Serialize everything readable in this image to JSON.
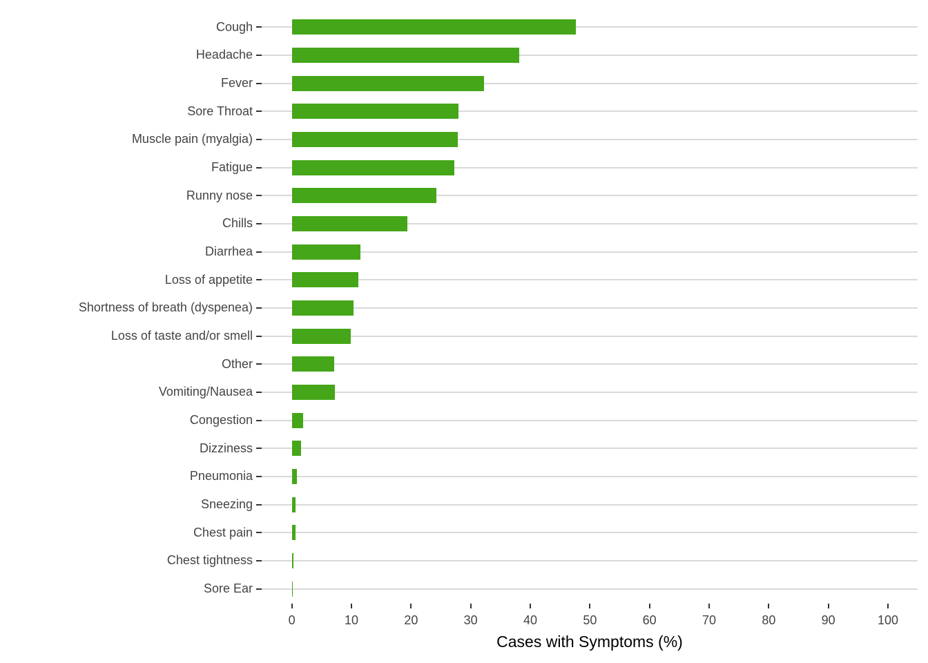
{
  "chart_data": {
    "type": "bar",
    "orientation": "horizontal",
    "title": "",
    "xlabel": "Cases with Symptoms (%)",
    "ylabel": "",
    "categories": [
      "Cough",
      "Headache",
      "Fever",
      "Sore Throat",
      "Muscle pain (myalgia)",
      "Fatigue",
      "Runny nose",
      "Chills",
      "Diarrhea",
      "Loss of appetite",
      "Shortness of breath (dyspenea)",
      "Loss of taste and/or smell",
      "Other",
      "Vomiting/Nausea",
      "Congestion",
      "Dizziness",
      "Pneumonia",
      "Sneezing",
      "Chest pain",
      "Chest tightness",
      "Sore Ear"
    ],
    "values": [
      47.6,
      38.1,
      32.2,
      28.0,
      27.8,
      27.3,
      24.3,
      19.4,
      11.5,
      11.1,
      10.3,
      9.9,
      7.1,
      7.2,
      1.9,
      1.5,
      0.8,
      0.6,
      0.6,
      0.3,
      0.15
    ],
    "xlim": [
      0,
      100
    ],
    "xticks": [
      0,
      10,
      20,
      30,
      40,
      50,
      60,
      70,
      80,
      90,
      100
    ],
    "grid": "horizontal-major-only",
    "legend": "none",
    "colors": {
      "bar": "#44A618",
      "gridline": "#d9d9d9",
      "axis_text": "#444444",
      "axis_title": "#000000",
      "tick_mark": "#333333",
      "background": "#ffffff"
    }
  }
}
